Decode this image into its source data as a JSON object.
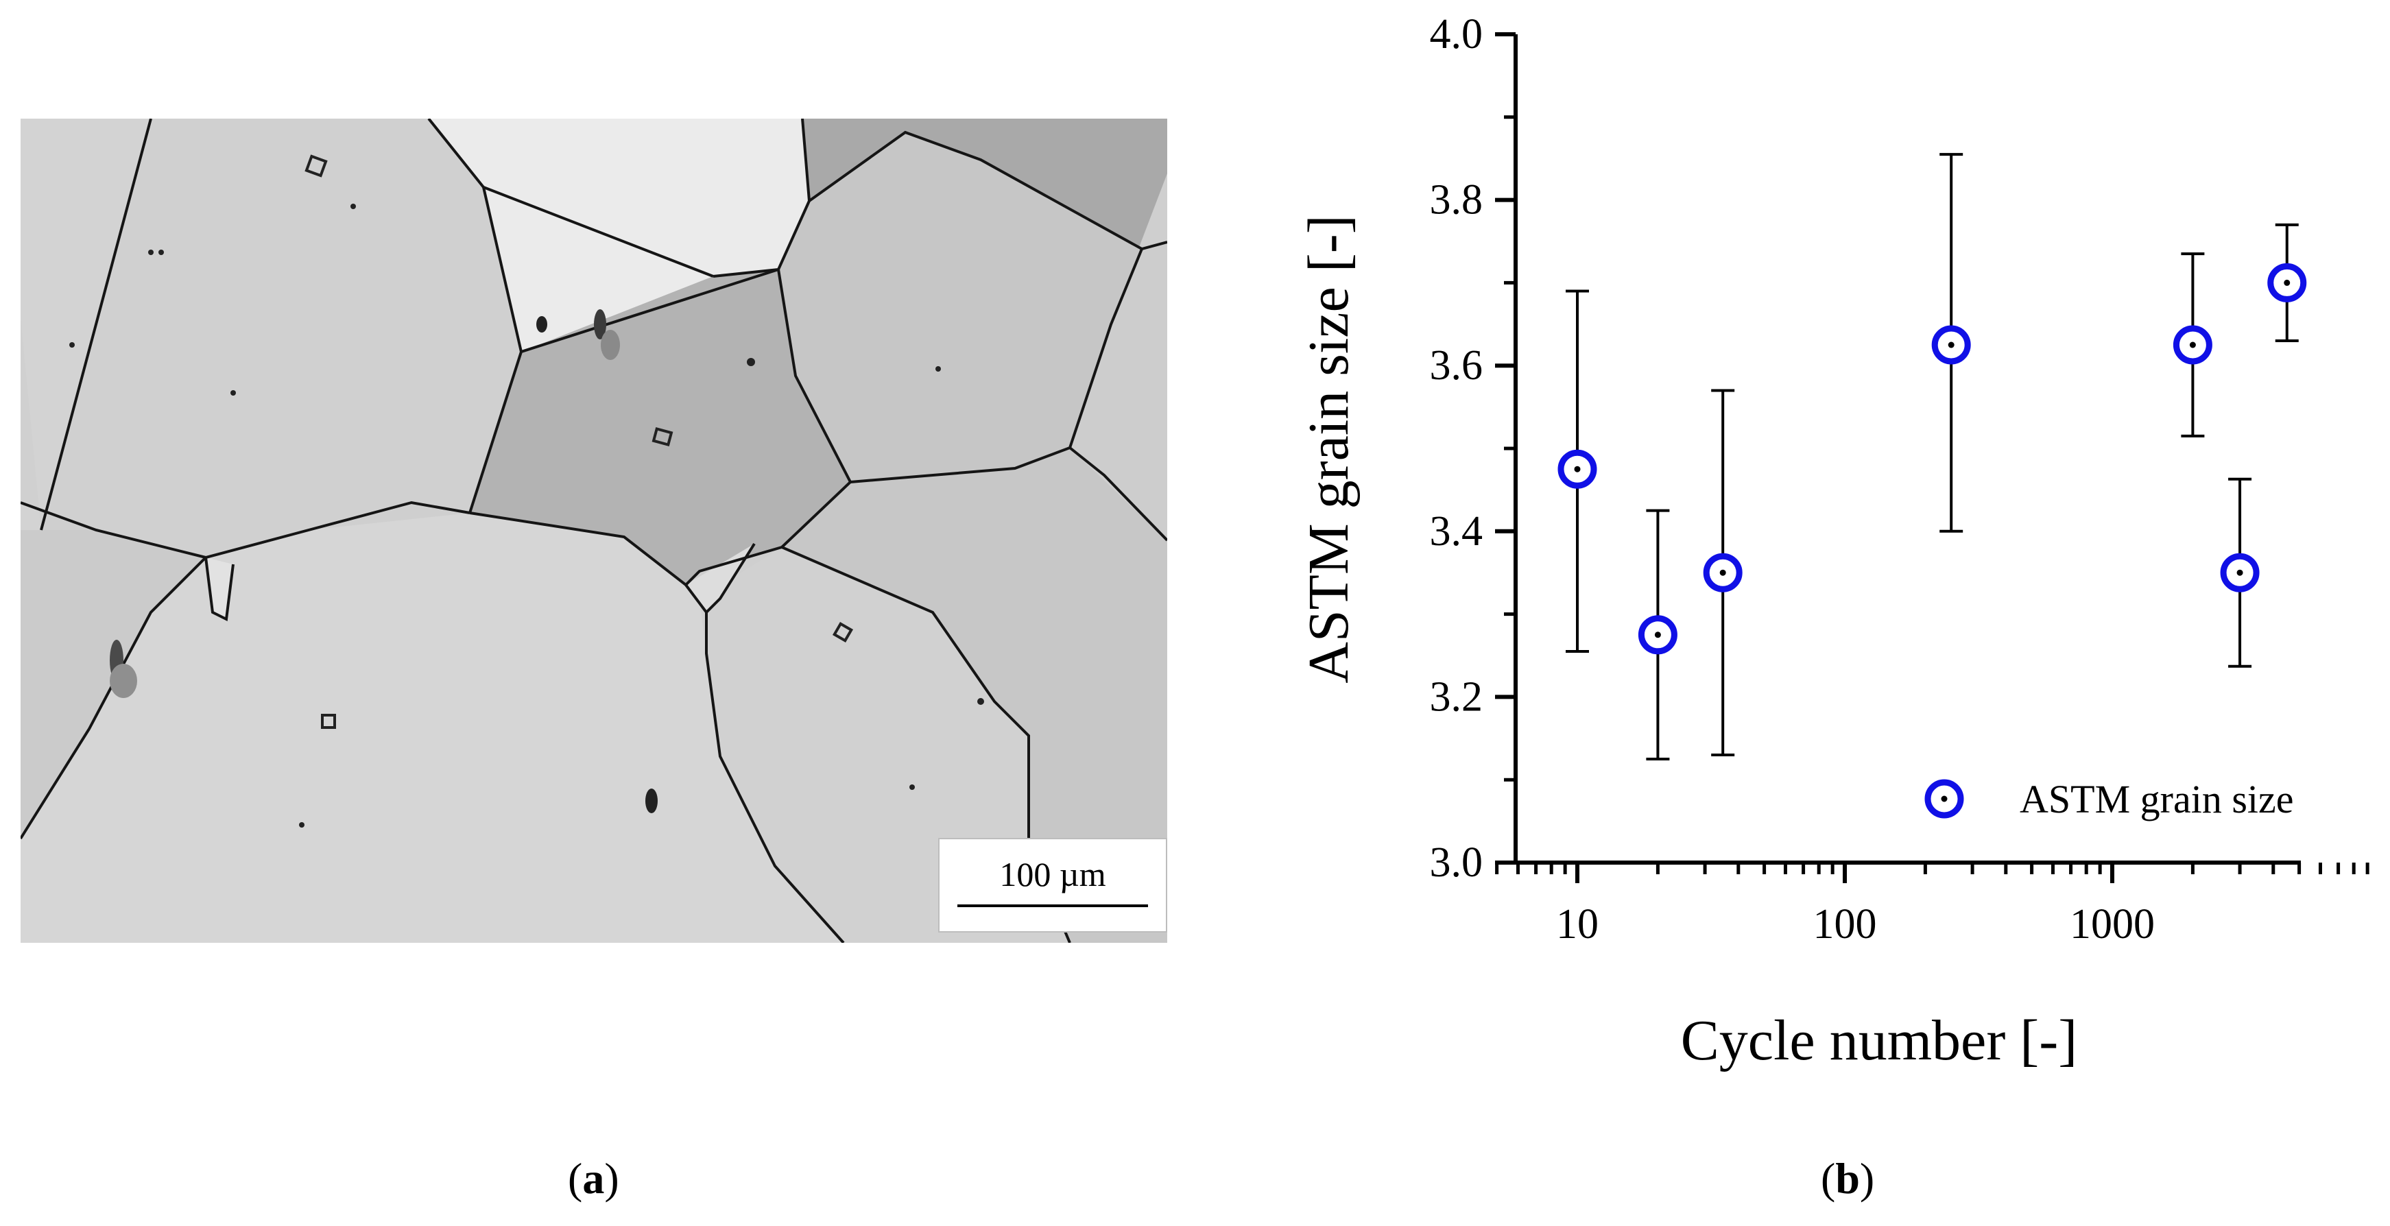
{
  "panel_a": {
    "scale_bar_label": "100 µm",
    "caption_open": "(",
    "caption_letter": "a",
    "caption_close": ")"
  },
  "panel_b": {
    "caption_open": "(",
    "caption_letter": "b",
    "caption_close": ")"
  },
  "chart_data": {
    "type": "scatter",
    "title": "",
    "xlabel": "Cycle number [-]",
    "ylabel": "ASTM grain size [-]",
    "xscale": "log",
    "xlim": [
      5,
      9000
    ],
    "ylim": [
      3.0,
      4.0
    ],
    "x_ticks": [
      10,
      100,
      1000
    ],
    "x_tick_labels": [
      "10",
      "100",
      "1000"
    ],
    "y_ticks": [
      3.0,
      3.2,
      3.4,
      3.6,
      3.8,
      4.0
    ],
    "y_tick_labels": [
      "3.0",
      "3.2",
      "3.4",
      "3.6",
      "3.8",
      "4.0"
    ],
    "grid": false,
    "legend": {
      "position": "bottom-right",
      "entries": [
        "ASTM grain size"
      ]
    },
    "marker_color": "#1010e6",
    "series": [
      {
        "name": "ASTM grain size",
        "points": [
          {
            "x": 10,
            "y": 3.475,
            "y_low": 3.255,
            "y_high": 3.69
          },
          {
            "x": 20,
            "y": 3.275,
            "y_low": 3.125,
            "y_high": 3.425
          },
          {
            "x": 35,
            "y": 3.35,
            "y_low": 3.13,
            "y_high": 3.57
          },
          {
            "x": 250,
            "y": 3.625,
            "y_low": 3.4,
            "y_high": 3.855
          },
          {
            "x": 2000,
            "y": 3.625,
            "y_low": 3.515,
            "y_high": 3.735
          },
          {
            "x": 3000,
            "y": 3.35,
            "y_low": 3.237,
            "y_high": 3.463
          },
          {
            "x": 4500,
            "y": 3.7,
            "y_low": 3.63,
            "y_high": 3.77
          }
        ]
      }
    ]
  }
}
